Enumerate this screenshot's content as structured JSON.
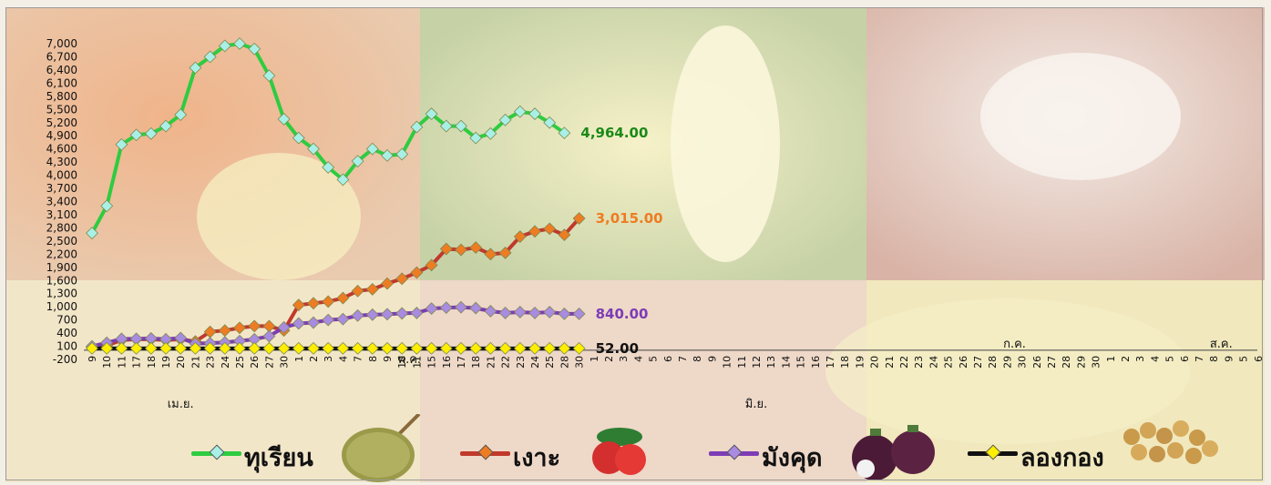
{
  "chart_data": {
    "type": "line",
    "yticks": [
      "-200",
      "100",
      "400",
      "700",
      "1,000",
      "1,300",
      "1,600",
      "1,900",
      "2,200",
      "2,500",
      "2,800",
      "3,100",
      "3,400",
      "3,700",
      "4,000",
      "4,300",
      "4,600",
      "4,900",
      "5,200",
      "5,500",
      "5,800",
      "6,100",
      "6,400",
      "6,700",
      "7,000"
    ],
    "ylim": [
      -200,
      7000
    ],
    "x_labels": [
      "9",
      "10",
      "11",
      "17",
      "18",
      "19",
      "20",
      "21",
      "23",
      "24",
      "25",
      "26",
      "27",
      "30",
      "1",
      "2",
      "3",
      "4",
      "7",
      "8",
      "9",
      "10",
      "11",
      "15",
      "16",
      "17",
      "18",
      "21",
      "22",
      "23",
      "24",
      "25",
      "28",
      "30",
      "1",
      "2",
      "3",
      "4",
      "5",
      "6",
      "7",
      "8",
      "9",
      "10",
      "11",
      "12",
      "13",
      "14",
      "15",
      "16",
      "17",
      "18",
      "19",
      "20",
      "21",
      "22",
      "23",
      "24",
      "25",
      "26",
      "27",
      "28",
      "29",
      "30",
      "26",
      "27",
      "28",
      "29",
      "30",
      "1",
      "2",
      "3",
      "4",
      "5",
      "6",
      "7",
      "8",
      "9",
      "5",
      "6"
    ],
    "month_labels": [
      {
        "text": "เม.ย.",
        "index": 6
      },
      {
        "text": "พ.ค.",
        "index": 21.5
      },
      {
        "text": "มิ.ย.",
        "index": 45
      },
      {
        "text": "ก.ค.",
        "index": 62.5
      },
      {
        "text": "ส.ค.",
        "index": 76.5
      }
    ],
    "series": [
      {
        "name": "ทุเรียน",
        "color": "#2ecc40",
        "marker": "#a8f0e6",
        "values": [
          2680,
          3300,
          4700,
          4920,
          4950,
          5120,
          5380,
          6450,
          6700,
          6950,
          7000,
          6880,
          6270,
          5280,
          4850,
          4600,
          4180,
          3900,
          4320,
          4600,
          4450,
          4480,
          5100,
          5400,
          5120,
          5120,
          4850,
          4950,
          5260,
          5450,
          5400,
          5200,
          4964
        ]
      },
      {
        "name": "เงาะ",
        "color": "#c0392b",
        "marker": "#ee7c22",
        "values": [
          80,
          120,
          240,
          260,
          260,
          240,
          260,
          210,
          430,
          460,
          520,
          560,
          560,
          460,
          1040,
          1080,
          1120,
          1200,
          1360,
          1400,
          1530,
          1640,
          1780,
          1950,
          2320,
          2300,
          2350,
          2200,
          2230,
          2600,
          2720,
          2780,
          2640,
          3015
        ]
      },
      {
        "name": "มังคุด",
        "color": "#7d3cb5",
        "marker": "#a98be0",
        "values": [
          100,
          180,
          270,
          270,
          280,
          260,
          290,
          160,
          170,
          190,
          220,
          260,
          330,
          530,
          620,
          640,
          700,
          720,
          800,
          820,
          830,
          850,
          860,
          960,
          980,
          990,
          970,
          900,
          860,
          880,
          860,
          880,
          840,
          840
        ]
      },
      {
        "name": "ลองกอง",
        "color": "#111111",
        "marker": "#ffee00",
        "values": [
          52,
          52,
          52,
          52,
          52,
          52,
          52,
          52,
          52,
          52,
          52,
          52,
          52,
          52,
          52,
          52,
          52,
          52,
          52,
          52,
          52,
          52,
          52,
          52,
          52,
          52,
          52,
          52,
          52,
          52,
          52,
          52,
          52,
          52
        ]
      }
    ],
    "end_labels": [
      {
        "text": "4,964.00",
        "color": "#1a8a17"
      },
      {
        "text": "3,015.00",
        "color": "#ee7c22"
      },
      {
        "text": "840.00",
        "color": "#7d3cb5"
      },
      {
        "text": "52.00",
        "color": "#111111"
      }
    ],
    "legend": [
      "ทุเรียน",
      "เงาะ",
      "มังคุด",
      "ลองกอง"
    ]
  }
}
